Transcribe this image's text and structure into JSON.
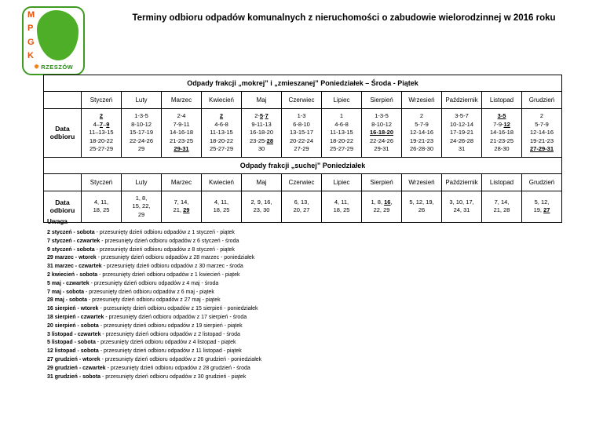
{
  "page": {
    "title": "Terminy odbioru odpadów komunalnych z nieruchomości o zabudowie wielorodzinnej w 2016 roku"
  },
  "logo": {
    "letters": [
      "M",
      "P",
      "G",
      "K"
    ],
    "city": "RZESZÓW"
  },
  "months": [
    "Styczeń",
    "Luty",
    "Marzec",
    "Kwiecień",
    "Maj",
    "Czerwiec",
    "Lipiec",
    "Sierpień",
    "Wrzesień",
    "Październik",
    "Listopad",
    "Grudzień"
  ],
  "wet_table": {
    "title": "Odpady frakcji „mokrej” i „zmieszanej” Poniedziałek – Środa - Piątek",
    "row_label": "Data odbioru",
    "cells": [
      [
        "*2*",
        "4–*7*–*9*",
        "11–13-15",
        "18-20-22",
        "25-27-29"
      ],
      [
        "1-3-5",
        "8-10-12",
        "15-17-19",
        "22-24-26",
        "29"
      ],
      [
        "2-4",
        "7-9-11",
        "14-16-18",
        "21-23-25",
        "*29-31*"
      ],
      [
        "*2*",
        "4-6-8",
        "11-13-15",
        "18-20-22",
        "25-27-29"
      ],
      [
        "2-*5*-*7*",
        "9-11-13",
        "16-18-20",
        "23-25-*28*",
        "30"
      ],
      [
        "1-3",
        "6-8-10",
        "13-15-17",
        "20-22-24",
        "27-29"
      ],
      [
        "1",
        "4-6-8",
        "11-13-15",
        "18-20-22",
        "25-27-29"
      ],
      [
        "1-3-5",
        "8-10-12",
        "*16-18-20*",
        "22-24-26",
        "29-31"
      ],
      [
        "2",
        "5-7-9",
        "12-14-16",
        "19-21-23",
        "26-28-30"
      ],
      [
        "3-5-7",
        "10-12-14",
        "17-19-21",
        "24-26-28",
        "31"
      ],
      [
        "*3-5*",
        "7-9-*12*",
        "14-16-18",
        "21-23-25",
        "28-30"
      ],
      [
        "2",
        "5-7-9",
        "12-14-16",
        "19-21-23",
        "*27-29-31*"
      ]
    ]
  },
  "dry_table": {
    "title": "Odpady frakcji „suchej” Poniedziałek",
    "row_label": "Data odbioru",
    "cells": [
      [
        "4, 11,",
        "18, 25"
      ],
      [
        "1, 8,",
        "15, 22,",
        "29"
      ],
      [
        "7, 14,",
        "21, *29*"
      ],
      [
        "4, 11,",
        "18, 25"
      ],
      [
        "2, 9, 16,",
        "23, 30"
      ],
      [
        "6, 13,",
        "20, 27"
      ],
      [
        "4, 11,",
        "18, 25"
      ],
      [
        "1, 8, *16*,",
        "22, 29"
      ],
      [
        "5, 12, 19,",
        "26"
      ],
      [
        "3, 10, 17,",
        "24, 31"
      ],
      [
        "7, 14,",
        "21, 28"
      ],
      [
        "5, 12,",
        "19, *27*"
      ]
    ]
  },
  "notes": {
    "title": "Uwaga",
    "items": [
      {
        "lead": "2 styczeń - sobota",
        "text": "- przesunięty dzień odbioru odpadów z 1 styczeń - piątek"
      },
      {
        "lead": "7 styczeń - czwartek",
        "text": "- przesunięty dzień odbioru odpadów z 6 styczeń - środa"
      },
      {
        "lead": "9 styczeń - sobota",
        "text": "- przesunięty dzień odbioru odpadów z 8 styczeń - piątek"
      },
      {
        "lead": "29 marzec - wtorek",
        "text": "- przesunięty dzień odbioru odpadów z 28 marzec - poniedziałek"
      },
      {
        "lead": "31 marzec - czwartek",
        "text": "- przesunięty dzień odbioru odpadów z 30 marzec - środa"
      },
      {
        "lead": "2 kwiecień - sobota",
        "text": "- przesunięty dzień odbioru odpadów z 1 kwiecień - piątek"
      },
      {
        "lead": "5 maj - czwartek",
        "text": "- przesunięty dzień odbioru odpadów z 4 maj - środa"
      },
      {
        "lead": "7 maj - sobota",
        "text": "- przesunięty dzień odbioru odpadów z 6 maj - piątek"
      },
      {
        "lead": "28 maj - sobota",
        "text": "- przesunięty dzień odbioru odpadów z 27 maj - piątek"
      },
      {
        "lead": "16 sierpień - wtorek",
        "text": "- przesunięty dzień odbioru odpadów z 15 sierpień - poniedziałek"
      },
      {
        "lead": "18 sierpień - czwartek",
        "text": "- przesunięty dzień odbioru odpadów z 17 sierpień - środa"
      },
      {
        "lead": "20 sierpień - sobota",
        "text": "- przesunięty dzień odbioru odpadów z 19 sierpień - piątek"
      },
      {
        "lead": "3 listopad - czwartek",
        "text": "- przesunięty dzień odbioru odpadów z 2 listopad - środa"
      },
      {
        "lead": "5 listopad - sobota",
        "text": "- przesunięty dzień odbioru odpadów z 4 listopad - piątek"
      },
      {
        "lead": "12 listopad - sobota",
        "text": "- przesunięty dzień odbioru odpadów z 11 listopad - piątek"
      },
      {
        "lead": "27 grudzień - wtorek",
        "text": "- przesunięty dzień odbioru odpadów z 26 grudzień - poniedziałek"
      },
      {
        "lead": "29 grudzień - czwartek",
        "text": "- przesunięty dzień odbioru odpadów z 28 grudzień - środa"
      },
      {
        "lead": "31 grudzień - sobota",
        "text": "- przesunięty dzień odbioru odpadów z 30 grudzień - piątek"
      }
    ]
  }
}
